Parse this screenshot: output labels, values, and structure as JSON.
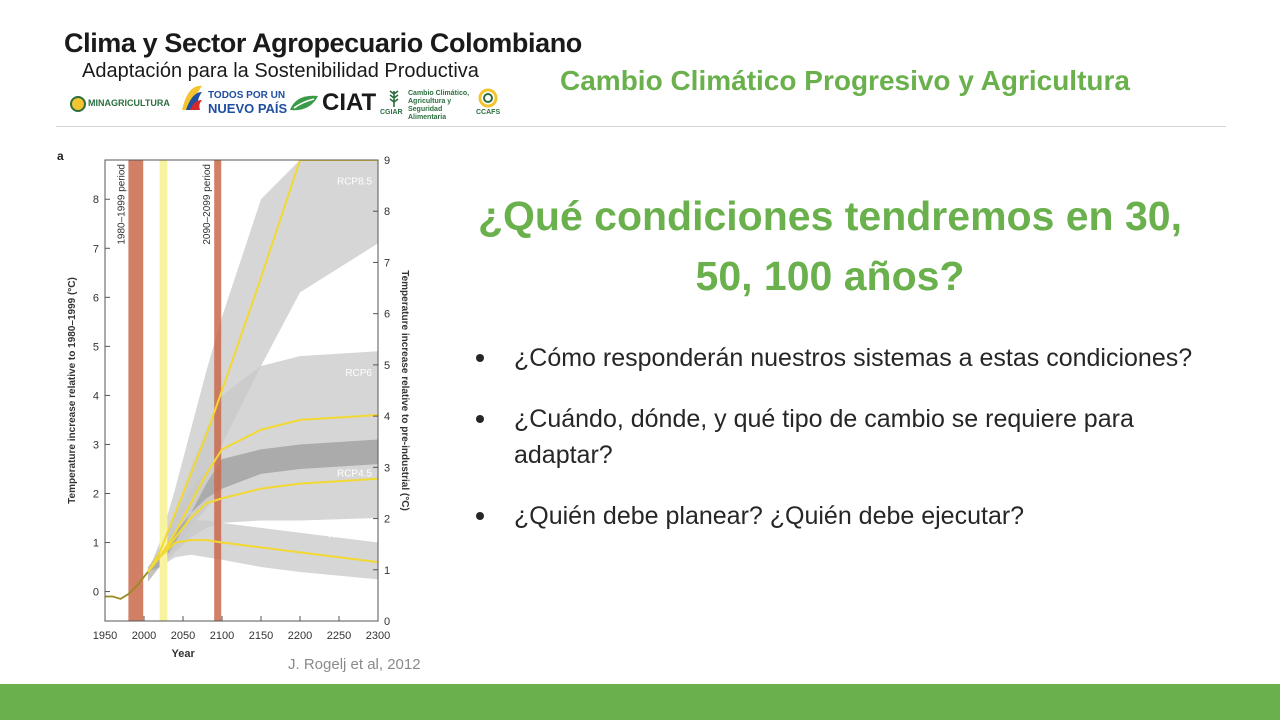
{
  "header": {
    "logo_title": "Clima y Sector Agropecuario Colombiano",
    "logo_subtitle": "Adaptación para la Sostenibilidad Productiva",
    "partners": {
      "minagricultura": "MINAGRICULTURA",
      "todos_line1": "TODOS POR UN",
      "todos_line2": "NUEVO PAÍS",
      "ciat": "CIAT",
      "cgiar": "CGIAR",
      "ccafs_text": "Cambio Climático, Agricultura y Seguridad Alimentaria",
      "ccafs": "CCAFS"
    },
    "title": "Cambio Climático Progresivo y Agricultura"
  },
  "main": {
    "question": "¿Qué condiciones tendremos en 30, 50, 100 años?",
    "bullets": [
      "¿Cómo responderán nuestros sistemas a estas condiciones?",
      "¿Cuándo, dónde, y qué tipo de cambio se requiere para adaptar?",
      "¿Quién debe planear? ¿Quién debe ejecutar?"
    ],
    "citation": "J. Rogelj et al, 2012"
  },
  "colors": {
    "accent_green": "#6ab04c",
    "band_gray": "#c8c8c8",
    "band_dark": "#8f8f8f",
    "projection_yellow": "#f2d832",
    "period_red": "#c9684a",
    "highlight_yellow": "#f7f3a0"
  },
  "chart_data": {
    "type": "area",
    "panel_label": "a",
    "xlabel": "Year",
    "ylabel_left": "Temperature increase relative to 1980–1999 (°C)",
    "ylabel_right": "Temperature increase relative to pre-industrial (°C)",
    "xlim": [
      1950,
      2300
    ],
    "ylim_left": [
      -0.6,
      8.8
    ],
    "ylim_right": [
      0,
      9
    ],
    "x_ticks": [
      1950,
      2000,
      2050,
      2100,
      2150,
      2200,
      2250,
      2300
    ],
    "y_ticks_left": [
      0,
      1,
      2,
      3,
      4,
      5,
      6,
      7,
      8
    ],
    "y_ticks_right": [
      0,
      1,
      2,
      3,
      4,
      5,
      6,
      7,
      8,
      9
    ],
    "period_labels": [
      "1980–1999 period",
      "2090–2099 period"
    ],
    "periods": [
      [
        1980,
        1999
      ],
      [
        2090,
        2099
      ]
    ],
    "highlight_band": [
      2020,
      2030
    ],
    "historical": {
      "x": [
        1950,
        1960,
        1970,
        1980,
        1990,
        2000,
        2005
      ],
      "y": [
        -0.1,
        -0.1,
        -0.15,
        -0.05,
        0.1,
        0.3,
        0.4
      ]
    },
    "series": [
      {
        "name": "RCP8.5",
        "x": [
          2005,
          2020,
          2040,
          2060,
          2080,
          2100,
          2150,
          2200,
          2300
        ],
        "y": [
          0.4,
          0.8,
          1.6,
          2.4,
          3.2,
          4.1,
          6.4,
          8.8,
          8.8
        ],
        "low": [
          0.4,
          0.6,
          1.2,
          1.8,
          2.4,
          3.0,
          4.6,
          6.1,
          7.1
        ],
        "high": [
          0.4,
          1.0,
          2.1,
          3.3,
          4.5,
          5.6,
          8.0,
          8.8,
          8.8
        ]
      },
      {
        "name": "RCP6",
        "x": [
          2005,
          2020,
          2040,
          2060,
          2080,
          2100,
          2150,
          2200,
          2300
        ],
        "y": [
          0.4,
          0.7,
          1.2,
          1.8,
          2.4,
          2.9,
          3.3,
          3.5,
          3.6
        ],
        "low": [
          0.4,
          0.5,
          0.9,
          1.3,
          1.7,
          2.1,
          2.4,
          2.5,
          2.6
        ],
        "high": [
          0.4,
          0.9,
          1.6,
          2.5,
          3.3,
          4.0,
          4.6,
          4.8,
          4.9
        ]
      },
      {
        "name": "RCP4.5",
        "x": [
          2005,
          2020,
          2040,
          2060,
          2080,
          2100,
          2150,
          2200,
          2300
        ],
        "y": [
          0.4,
          0.7,
          1.1,
          1.5,
          1.8,
          1.9,
          2.1,
          2.2,
          2.3
        ],
        "low": [
          0.4,
          0.5,
          0.8,
          1.1,
          1.3,
          1.4,
          1.45,
          1.45,
          1.5
        ],
        "high": [
          0.4,
          0.9,
          1.5,
          2.1,
          2.5,
          2.7,
          2.9,
          3.0,
          3.1
        ]
      },
      {
        "name": "RCP3-PD",
        "x": [
          2005,
          2020,
          2040,
          2060,
          2080,
          2100,
          2150,
          2200,
          2300
        ],
        "y": [
          0.4,
          0.7,
          1.0,
          1.05,
          1.05,
          1.0,
          0.9,
          0.8,
          0.6
        ],
        "low": [
          0.4,
          0.5,
          0.7,
          0.75,
          0.7,
          0.65,
          0.5,
          0.4,
          0.25
        ],
        "high": [
          0.4,
          0.9,
          1.3,
          1.45,
          1.45,
          1.4,
          1.3,
          1.2,
          1.0
        ]
      }
    ]
  }
}
